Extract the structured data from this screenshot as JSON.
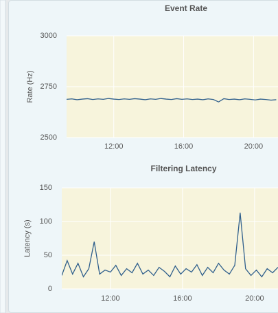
{
  "chart_data": [
    {
      "type": "line",
      "title": "Event Rate",
      "y_label": "Rate (Hz)",
      "x": [
        9.3,
        9.6,
        9.9,
        10.2,
        10.5,
        10.8,
        11.1,
        11.4,
        11.7,
        12.0,
        12.3,
        12.6,
        12.9,
        13.2,
        13.5,
        13.8,
        14.1,
        14.4,
        14.7,
        15.0,
        15.3,
        15.6,
        15.9,
        16.2,
        16.5,
        16.8,
        17.1,
        17.4,
        17.7,
        18.0,
        18.3,
        18.6,
        18.9,
        19.2,
        19.5,
        19.8,
        20.1,
        20.4,
        20.7,
        21.0,
        21.3
      ],
      "series": [
        {
          "name": "Rate",
          "color": "#2f5f8c",
          "values": [
            2688,
            2690,
            2686,
            2689,
            2691,
            2687,
            2690,
            2688,
            2692,
            2689,
            2687,
            2690,
            2688,
            2691,
            2689,
            2686,
            2690,
            2688,
            2692,
            2689,
            2687,
            2691,
            2688,
            2690,
            2687,
            2689,
            2686,
            2690,
            2687,
            2675,
            2691,
            2687,
            2689,
            2686,
            2690,
            2688,
            2685,
            2689,
            2687,
            2684,
            2686
          ]
        }
      ],
      "xlim": [
        9.3,
        21.4
      ],
      "xticks": [
        {
          "value": 12,
          "label": "12:00"
        },
        {
          "value": 16,
          "label": "16:00"
        },
        {
          "value": 20,
          "label": "20:00"
        }
      ],
      "ylim": [
        2500,
        3000
      ],
      "yticks": [
        2500,
        2750,
        3000
      ],
      "grid": true
    },
    {
      "type": "line",
      "title": "Filtering Latency",
      "y_label": "Latency (s)",
      "x": [
        9.3,
        9.6,
        9.9,
        10.2,
        10.5,
        10.8,
        11.1,
        11.4,
        11.7,
        12.0,
        12.3,
        12.6,
        12.9,
        13.2,
        13.5,
        13.8,
        14.1,
        14.4,
        14.7,
        15.0,
        15.3,
        15.6,
        15.9,
        16.2,
        16.5,
        16.8,
        17.1,
        17.4,
        17.7,
        18.0,
        18.3,
        18.6,
        18.9,
        19.2,
        19.5,
        19.8,
        20.1,
        20.4,
        20.7,
        21.0,
        21.3
      ],
      "series": [
        {
          "name": "Latency",
          "color": "#2f5f8c",
          "values": [
            20,
            42,
            22,
            38,
            18,
            30,
            70,
            22,
            28,
            25,
            35,
            20,
            30,
            24,
            38,
            22,
            28,
            20,
            32,
            26,
            18,
            34,
            22,
            30,
            25,
            36,
            20,
            32,
            24,
            38,
            28,
            22,
            35,
            113,
            30,
            20,
            28,
            18,
            30,
            24,
            32
          ]
        }
      ],
      "xlim": [
        9.3,
        21.3
      ],
      "xticks": [
        {
          "value": 12,
          "label": "12:00"
        },
        {
          "value": 16,
          "label": "16:00"
        },
        {
          "value": 20,
          "label": "20:00"
        }
      ],
      "ylim": [
        0,
        150
      ],
      "yticks": [
        0,
        50,
        100,
        150
      ],
      "grid": true
    }
  ]
}
